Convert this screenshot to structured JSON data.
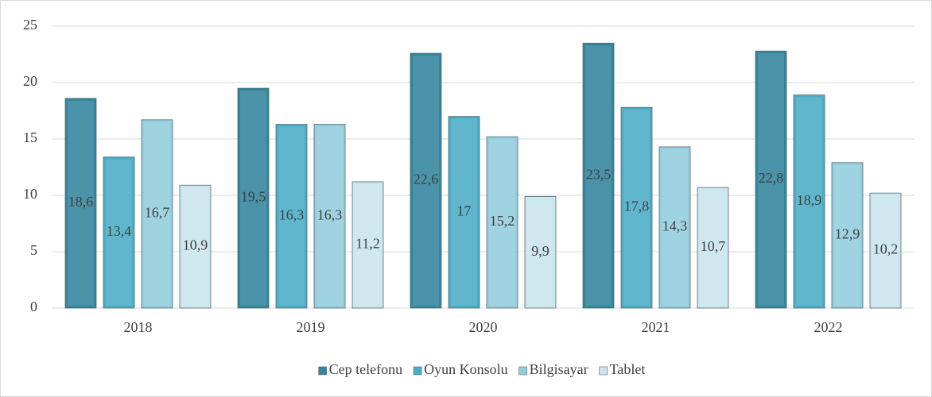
{
  "chart_data": {
    "type": "bar",
    "categories": [
      "2018",
      "2019",
      "2020",
      "2021",
      "2022"
    ],
    "series": [
      {
        "name": "Cep telefonu",
        "color": "#31859c",
        "values": [
          18.6,
          19.5,
          22.6,
          23.5,
          22.8
        ],
        "value_labels": [
          "18,6",
          "19,5",
          "22,6",
          "23,5",
          "22,8"
        ]
      },
      {
        "name": "Oyun Konsolu",
        "color": "#4bacc6",
        "values": [
          13.4,
          16.3,
          17,
          17.8,
          18.9
        ],
        "value_labels": [
          "13,4",
          "16,3",
          "17",
          "17,8",
          "18,9"
        ]
      },
      {
        "name": "Bilgisayar",
        "color": "#93cddd",
        "values": [
          16.7,
          16.3,
          15.2,
          14.3,
          12.9
        ],
        "value_labels": [
          "16,7",
          "16,3",
          "15,2",
          "14,3",
          "12,9"
        ]
      },
      {
        "name": "Tablet",
        "color": "#c9e5ee",
        "values": [
          10.9,
          11.2,
          9.9,
          10.7,
          10.2
        ],
        "value_labels": [
          "10,9",
          "11,2",
          "9,9",
          "10,7",
          "10,2"
        ]
      }
    ],
    "ylim": [
      0,
      25
    ],
    "yticks": [
      0,
      5,
      10,
      15,
      20,
      25
    ],
    "grid": true,
    "legend": "bottom"
  }
}
